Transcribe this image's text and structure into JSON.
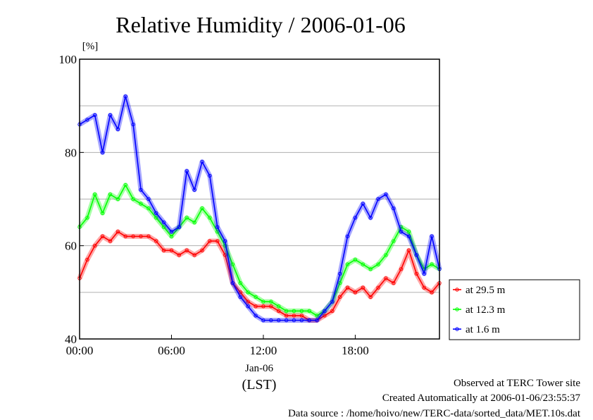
{
  "chart_data": {
    "type": "line",
    "title": "Relative Humidity / 2006-01-06",
    "ylabel": "[%]",
    "xlabel": "(LST)",
    "date_label": "Jan-06",
    "ylim": [
      40,
      100
    ],
    "xlim": [
      0,
      23.5
    ],
    "y_ticks": [
      40,
      60,
      80,
      100
    ],
    "x_tick_labels": [
      "00:00",
      "06:00",
      "12:00",
      "18:00"
    ],
    "x_tick_hours": [
      0,
      6,
      12,
      18
    ],
    "grid": true,
    "legend_position": "bottom-right",
    "series": [
      {
        "name": "at 29.5 m",
        "color": "#ff0000",
        "x": [
          0,
          0.5,
          1,
          1.5,
          2,
          2.5,
          3,
          3.5,
          4,
          4.5,
          5,
          5.5,
          6,
          6.5,
          7,
          7.5,
          8,
          8.5,
          9,
          9.5,
          10,
          10.5,
          11,
          11.5,
          12,
          12.5,
          13,
          13.5,
          14,
          14.5,
          15,
          15.5,
          16,
          16.5,
          17,
          17.5,
          18,
          18.5,
          19,
          19.5,
          20,
          20.5,
          21,
          21.5,
          22,
          22.5,
          23,
          23.5
        ],
        "y": [
          53,
          57,
          60,
          62,
          61,
          63,
          62,
          62,
          62,
          62,
          61,
          59,
          59,
          58,
          59,
          58,
          59,
          61,
          61,
          58,
          52,
          50,
          48,
          47,
          47,
          47,
          46,
          45,
          45,
          45,
          44,
          44,
          45,
          46,
          49,
          51,
          50,
          51,
          49,
          51,
          53,
          52,
          55,
          59,
          54,
          51,
          50,
          52
        ]
      },
      {
        "name": "at 12.3 m",
        "color": "#00ff00",
        "x": [
          0,
          0.5,
          1,
          1.5,
          2,
          2.5,
          3,
          3.5,
          4,
          4.5,
          5,
          5.5,
          6,
          6.5,
          7,
          7.5,
          8,
          8.5,
          9,
          9.5,
          10,
          10.5,
          11,
          11.5,
          12,
          12.5,
          13,
          13.5,
          14,
          14.5,
          15,
          15.5,
          16,
          16.5,
          17,
          17.5,
          18,
          18.5,
          19,
          19.5,
          20,
          20.5,
          21,
          21.5,
          22,
          22.5,
          23,
          23.5
        ],
        "y": [
          64,
          66,
          71,
          67,
          71,
          70,
          73,
          70,
          69,
          68,
          66,
          64,
          62,
          64,
          66,
          65,
          68,
          66,
          63,
          60,
          56,
          52,
          50,
          49,
          48,
          48,
          47,
          46,
          46,
          46,
          46,
          45,
          46,
          48,
          52,
          56,
          57,
          56,
          55,
          56,
          58,
          61,
          64,
          63,
          58,
          55,
          56,
          55
        ]
      },
      {
        "name": "at 1.6 m",
        "color": "#0000ff",
        "x": [
          0,
          0.5,
          1,
          1.5,
          2,
          2.5,
          3,
          3.5,
          4,
          4.5,
          5,
          5.5,
          6,
          6.5,
          7,
          7.5,
          8,
          8.5,
          9,
          9.5,
          10,
          10.5,
          11,
          11.5,
          12,
          12.5,
          13,
          13.5,
          14,
          14.5,
          15,
          15.5,
          16,
          16.5,
          17,
          17.5,
          18,
          18.5,
          19,
          19.5,
          20,
          20.5,
          21,
          21.5,
          22,
          22.5,
          23,
          23.5
        ],
        "y": [
          86,
          87,
          88,
          80,
          88,
          85,
          92,
          86,
          72,
          70,
          67,
          65,
          63,
          64,
          76,
          72,
          78,
          75,
          64,
          61,
          52,
          49,
          47,
          45,
          44,
          44,
          44,
          44,
          44,
          44,
          44,
          44,
          46,
          48,
          54,
          62,
          66,
          69,
          66,
          70,
          71,
          68,
          63,
          62,
          58,
          54,
          62,
          55
        ]
      }
    ]
  },
  "footer": {
    "line1": "Observed at TERC Tower site",
    "line2": "Created Automatically at 2006-01-06/23:55:37",
    "line3": "Data source : /home/hoivo/new/TERC-data/sorted_data/MET.10s.dat"
  }
}
